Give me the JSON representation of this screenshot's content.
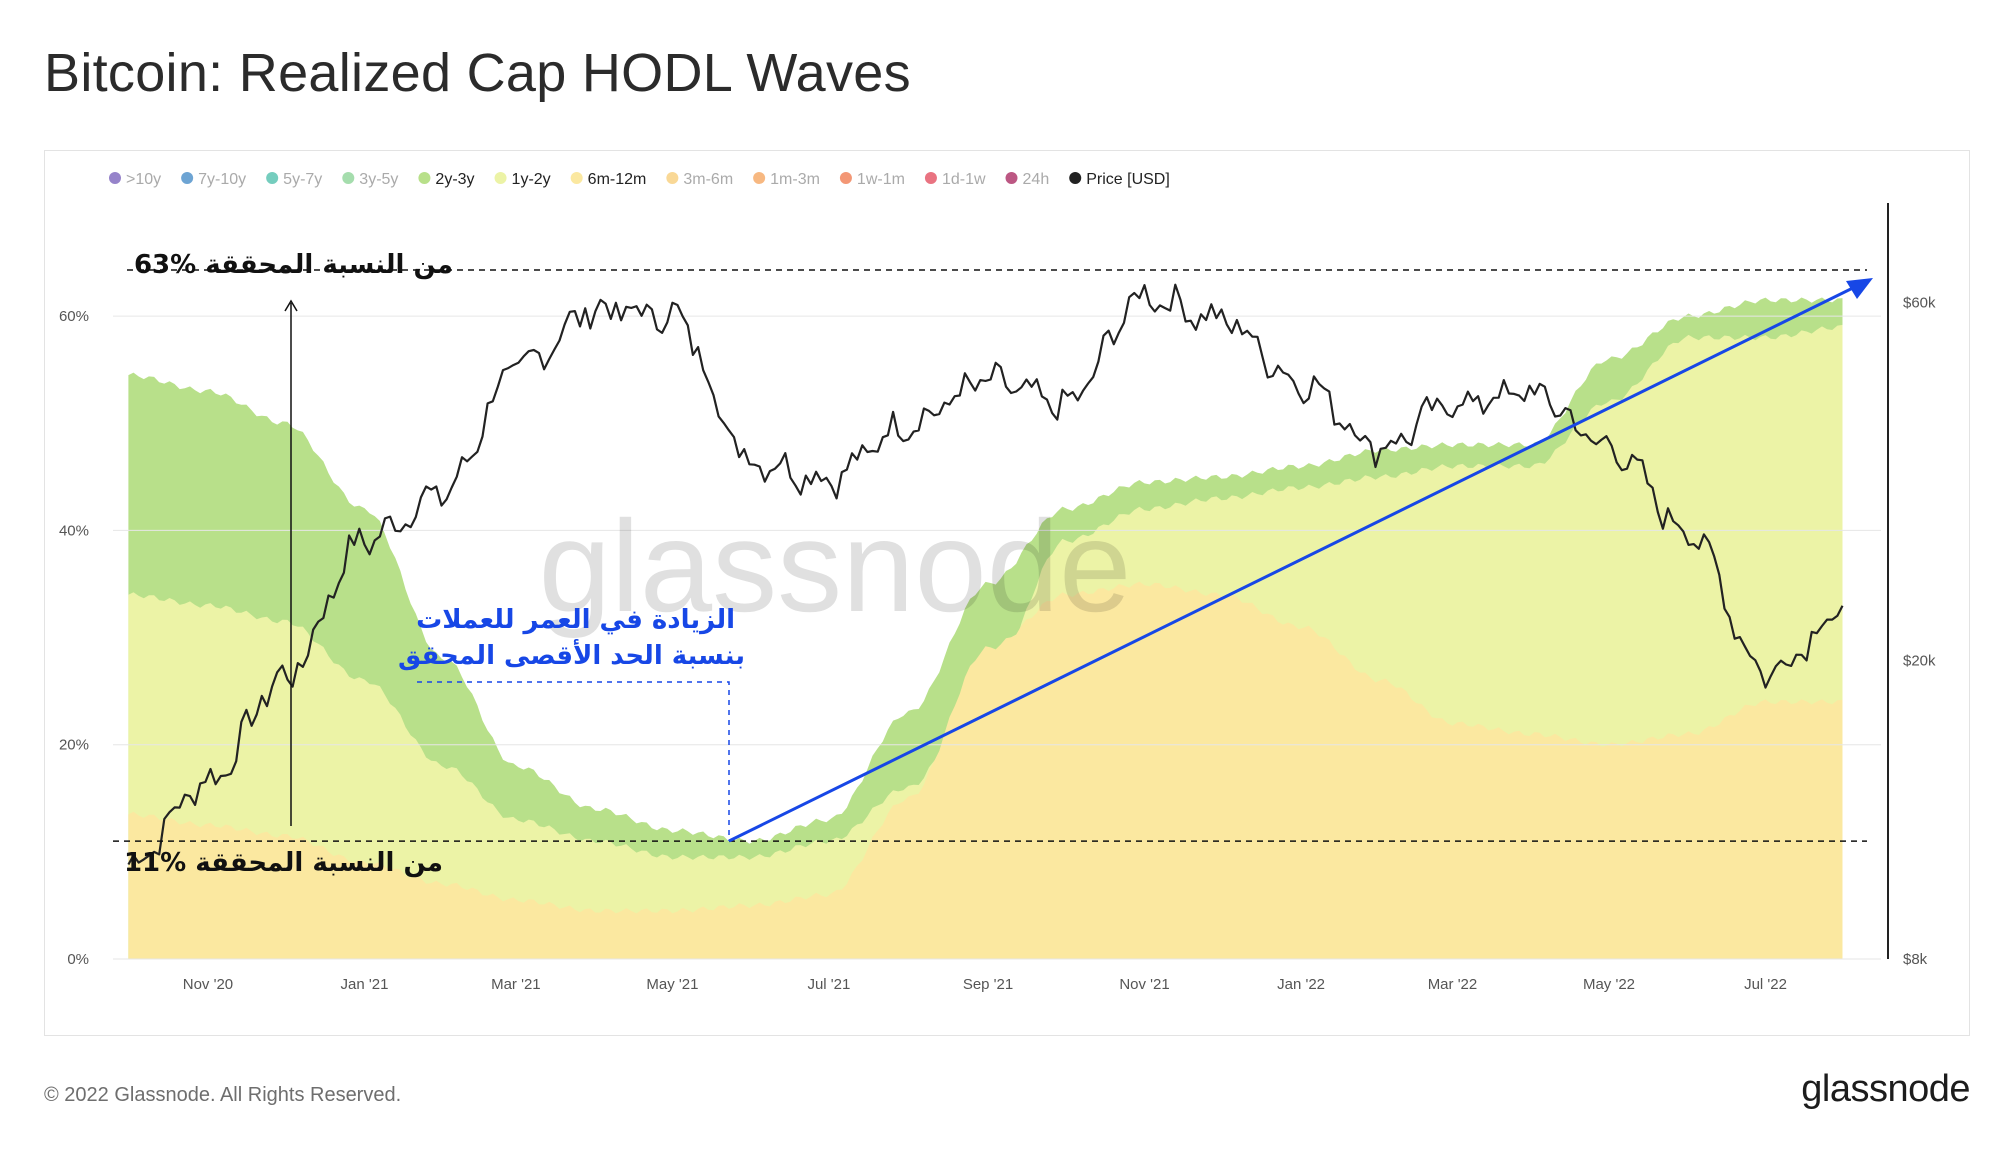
{
  "title": "Bitcoin: Realized Cap HODL Waves",
  "footer": {
    "copyright": "© 2022 Glassnode. All Rights Reserved.",
    "logo": "glassnode"
  },
  "watermark": "glassnode",
  "legend": [
    {
      "label": ">10y",
      "color": "#6a4fb3",
      "active": false
    },
    {
      "label": "7y-10y",
      "color": "#2f7dc1",
      "active": false
    },
    {
      "label": "5y-7y",
      "color": "#3bb8a2",
      "active": false
    },
    {
      "label": "3y-5y",
      "color": "#7fcf8a",
      "active": false
    },
    {
      "label": "2y-3y",
      "color": "#b8e08a",
      "active": true
    },
    {
      "label": "1y-2y",
      "color": "#ecf3a6",
      "active": true
    },
    {
      "label": "6m-12m",
      "color": "#fbe8a0",
      "active": true
    },
    {
      "label": "3m-6m",
      "color": "#f7c86a",
      "active": false
    },
    {
      "label": "1m-3m",
      "color": "#f39a4b",
      "active": false
    },
    {
      "label": "1w-1m",
      "color": "#ee6b3b",
      "active": false
    },
    {
      "label": "1d-1w",
      "color": "#e0384b",
      "active": false
    },
    {
      "label": "24h",
      "color": "#a0104e",
      "active": false
    },
    {
      "label": "Price [USD]",
      "color": "#222222",
      "active": true
    }
  ],
  "annotations": {
    "top_label": "63%  من النسبة المحققة",
    "bottom_label": "11% من النسبة المحققة",
    "blue_line1": "الزيادة في العمر للعملات",
    "blue_line2": "بنسبة الحد الأقصى المحقق",
    "top_pct": 63,
    "bottom_pct": 11
  },
  "chart_data": {
    "type": "area",
    "title": "Bitcoin: Realized Cap HODL Waves",
    "x_ticks": [
      "Nov '20",
      "Jan '21",
      "Mar '21",
      "May '21",
      "Jul '21",
      "Sep '21",
      "Nov '21",
      "Jan '22",
      "Mar '22",
      "May '22",
      "Jul '22"
    ],
    "x_range": [
      "2020-09-25",
      "2022-08-15"
    ],
    "y_left": {
      "ticks": [
        "0%",
        "20%",
        "40%",
        "60%"
      ],
      "range": [
        0,
        70
      ]
    },
    "y_right": {
      "ticks": [
        "$8k",
        "$20k",
        "$60k"
      ],
      "scale": "log",
      "range": [
        8000,
        80000
      ]
    },
    "grid": true,
    "legend_position": "top-left",
    "x": [
      "2020-10-01",
      "2020-11-01",
      "2020-12-01",
      "2021-01-01",
      "2021-02-01",
      "2021-03-01",
      "2021-04-01",
      "2021-05-01",
      "2021-06-01",
      "2021-07-01",
      "2021-08-01",
      "2021-09-01",
      "2021-10-01",
      "2021-11-01",
      "2021-12-01",
      "2022-01-01",
      "2022-02-01",
      "2022-03-01",
      "2022-04-01",
      "2022-05-01",
      "2022-06-01",
      "2022-07-01",
      "2022-08-01"
    ],
    "series": [
      {
        "name": "6m-12m",
        "color": "#fbe8a0",
        "values": [
          13.5,
          12.5,
          11.5,
          9,
          7,
          5.5,
          4.5,
          4.5,
          5,
          6,
          15,
          29,
          34,
          35,
          34,
          31,
          26,
          22,
          21,
          20,
          21,
          24,
          24
        ]
      },
      {
        "name": "1y-2y",
        "color": "#ecf3a6",
        "values": [
          34,
          33,
          31.5,
          26,
          18,
          13,
          11,
          9.5,
          9.5,
          11,
          16,
          26,
          39,
          42,
          43,
          44,
          45,
          46,
          46,
          52,
          58,
          58,
          59
        ]
      },
      {
        "name": "2y-3y",
        "color": "#b8e08a",
        "values": [
          54.5,
          53,
          50,
          42,
          28,
          18,
          14,
          12,
          11,
          13,
          23,
          35,
          42,
          44.5,
          45,
          46,
          47.5,
          48,
          48,
          56,
          60,
          61.5,
          61.5
        ]
      },
      {
        "name": "Price [USD]",
        "color": "#222222",
        "values": [
          10700,
          13800,
          19000,
          29000,
          33500,
          49000,
          58800,
          57700,
          37000,
          35000,
          41500,
          47100,
          43800,
          61300,
          57000,
          47000,
          38500,
          44000,
          45500,
          38500,
          29800,
          19300,
          23300
        ]
      }
    ]
  }
}
